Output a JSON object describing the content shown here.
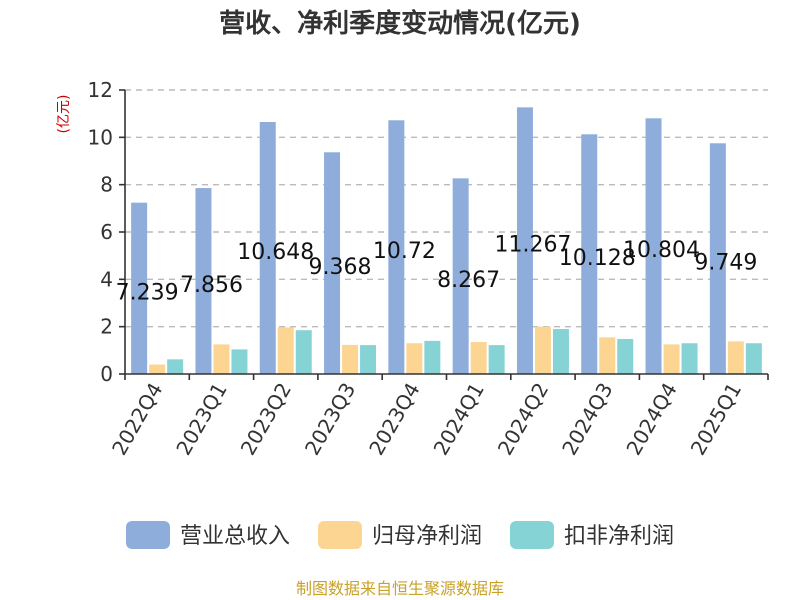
{
  "chart_data": {
    "type": "bar",
    "title": "营收、净利季度变动情况(亿元)",
    "ylabel": "(亿元)",
    "xlabel": "",
    "ylim": [
      0,
      12
    ],
    "yticks": [
      0,
      2,
      4,
      6,
      8,
      10,
      12
    ],
    "grid": true,
    "legend_position": "bottom",
    "categories": [
      "2022Q4",
      "2023Q1",
      "2023Q2",
      "2023Q3",
      "2023Q4",
      "2024Q1",
      "2024Q2",
      "2024Q3",
      "2024Q4",
      "2025Q1"
    ],
    "series": [
      {
        "name": "营业总收入",
        "color": "#8eaddb",
        "values": [
          7.239,
          7.856,
          10.648,
          9.368,
          10.72,
          8.267,
          11.267,
          10.128,
          10.804,
          9.749
        ],
        "labels": [
          "7.239",
          "7.856",
          "10.648",
          "9.368",
          "10.72",
          "8.267",
          "11.267",
          "10.128",
          "10.804",
          "9.749"
        ]
      },
      {
        "name": "归母净利润",
        "color": "#fdd593",
        "values": [
          0.4,
          1.25,
          1.97,
          1.23,
          1.3,
          1.35,
          2.0,
          1.55,
          1.25,
          1.38
        ]
      },
      {
        "name": "扣非净利润",
        "color": "#86d3d6",
        "values": [
          0.62,
          1.04,
          1.85,
          1.22,
          1.4,
          1.22,
          1.9,
          1.48,
          1.3,
          1.3
        ]
      }
    ]
  },
  "footer": {
    "source": "制图数据来自恒生聚源数据库"
  }
}
